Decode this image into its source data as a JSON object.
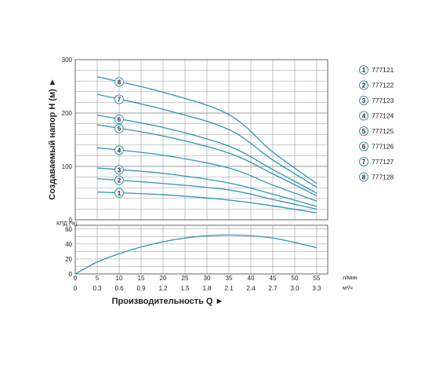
{
  "chart_data": [
    {
      "type": "line",
      "ylabel": "Создаваемый напор Н (м)",
      "ylim": [
        0,
        300
      ],
      "xlim": [
        0,
        57.5
      ],
      "yticks": [
        0,
        100,
        200,
        300
      ],
      "grid": true,
      "series": [
        {
          "name": "777121",
          "marker": "1",
          "x": [
            5,
            20,
            35,
            45,
            55
          ],
          "y": [
            52,
            47,
            37,
            26,
            13
          ]
        },
        {
          "name": "777122",
          "marker": "2",
          "x": [
            5,
            20,
            35,
            45,
            55
          ],
          "y": [
            77,
            68,
            56,
            38,
            20
          ]
        },
        {
          "name": "777123",
          "marker": "3",
          "x": [
            5,
            20,
            35,
            45,
            55
          ],
          "y": [
            97,
            87,
            69,
            48,
            25
          ]
        },
        {
          "name": "777124",
          "marker": "4",
          "x": [
            5,
            20,
            35,
            45,
            55
          ],
          "y": [
            135,
            121,
            97,
            65,
            35
          ]
        },
        {
          "name": "777125",
          "marker": "5",
          "x": [
            5,
            20,
            35,
            45,
            55
          ],
          "y": [
            178,
            157,
            125,
            86,
            45
          ]
        },
        {
          "name": "777126",
          "marker": "6",
          "x": [
            5,
            20,
            35,
            45,
            55
          ],
          "y": [
            196,
            173,
            138,
            94,
            50
          ]
        },
        {
          "name": "777127",
          "marker": "7",
          "x": [
            5,
            20,
            35,
            45,
            55
          ],
          "y": [
            235,
            207,
            169,
            112,
            61
          ]
        },
        {
          "name": "777128",
          "marker": "8",
          "x": [
            5,
            20,
            35,
            45,
            55
          ],
          "y": [
            268,
            239,
            197,
            127,
            68
          ]
        }
      ]
    },
    {
      "type": "line",
      "ylabel": "КПД (%)",
      "ylim": [
        0,
        65
      ],
      "xlim": [
        0,
        57.5
      ],
      "yticks": [
        0,
        20,
        40,
        60
      ],
      "grid": true,
      "series": [
        {
          "x": [
            0,
            5,
            10,
            15,
            20,
            25,
            30,
            35,
            40,
            45,
            50,
            55
          ],
          "y": [
            0,
            16,
            27,
            36,
            43,
            48,
            51,
            52,
            51,
            48,
            42,
            35
          ]
        }
      ]
    }
  ],
  "x_axis": {
    "ticks_lmin": [
      "0",
      "5",
      "10",
      "15",
      "20",
      "25",
      "30",
      "35",
      "40",
      "45",
      "50",
      "55"
    ],
    "unit_lmin": "л/мин",
    "ticks_m3h": [
      "0",
      "0.3",
      "0.6",
      "0.9",
      "1.2",
      "1.5",
      "1.8",
      "2.1",
      "2.4",
      "2.7",
      "3.0",
      "3.3"
    ],
    "unit_m3h": "м³/ч",
    "title": "Производительность Q ►"
  },
  "head_axis_title": "Создаваемый напор Н (м) ►",
  "eff_axis_label": "КПД (%)",
  "colors": {
    "curve": "#2e95ad",
    "marker_edge": "#2e95ad",
    "grid": "#9a9a9a",
    "frame": "#555555"
  }
}
